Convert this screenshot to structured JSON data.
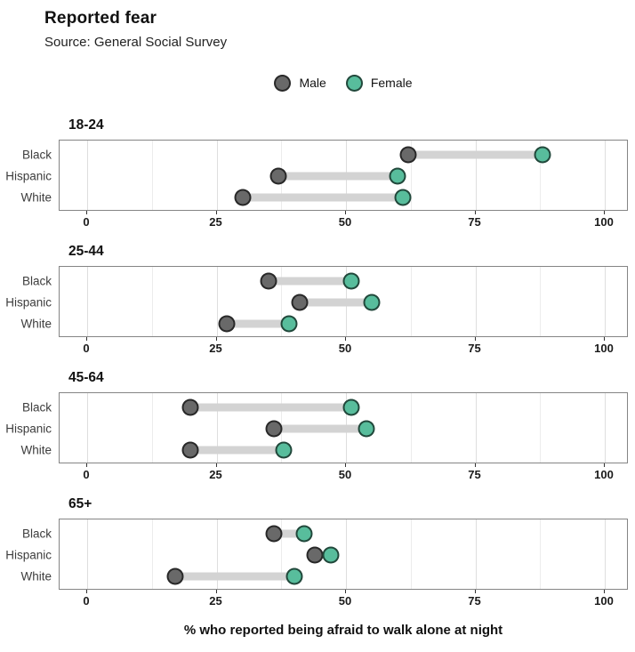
{
  "header": {
    "title": "Reported fear",
    "subtitle": "Source: General Social Survey"
  },
  "legend": {
    "items": [
      {
        "label": "Male",
        "color": "#696969"
      },
      {
        "label": "Female",
        "color": "#58bd9c"
      }
    ]
  },
  "chart_data": {
    "type": "dumbbell",
    "title": "Reported fear",
    "subtitle": "Source: General Social Survey",
    "xlabel": "% who reported being afraid to walk alone at night",
    "ylabel": "",
    "x_ticks": [
      0,
      25,
      50,
      75,
      100
    ],
    "x_minor_ticks": [
      12.5,
      37.5,
      62.5,
      87.5
    ],
    "xlim": [
      -5,
      105
    ],
    "grid": "vertical-only",
    "legend_position": "top-center",
    "categories": [
      "Black",
      "Hispanic",
      "White"
    ],
    "series_names": [
      "Male",
      "Female"
    ],
    "colors": {
      "male": "#696969",
      "female": "#58bd9c",
      "connector": "#d3d3d3"
    },
    "facets": [
      {
        "label": "18-24",
        "rows": [
          {
            "category": "Black",
            "male": 62,
            "female": 88
          },
          {
            "category": "Hispanic",
            "male": 37,
            "female": 60
          },
          {
            "category": "White",
            "male": 30,
            "female": 61
          }
        ]
      },
      {
        "label": "25-44",
        "rows": [
          {
            "category": "Black",
            "male": 35,
            "female": 51
          },
          {
            "category": "Hispanic",
            "male": 41,
            "female": 55
          },
          {
            "category": "White",
            "male": 27,
            "female": 39
          }
        ]
      },
      {
        "label": "45-64",
        "rows": [
          {
            "category": "Black",
            "male": 20,
            "female": 51
          },
          {
            "category": "Hispanic",
            "male": 36,
            "female": 54
          },
          {
            "category": "White",
            "male": 20,
            "female": 38
          }
        ]
      },
      {
        "label": "65+",
        "rows": [
          {
            "category": "Black",
            "male": 36,
            "female": 42
          },
          {
            "category": "Hispanic",
            "male": 44,
            "female": 47
          },
          {
            "category": "White",
            "male": 17,
            "female": 40
          }
        ]
      }
    ]
  }
}
